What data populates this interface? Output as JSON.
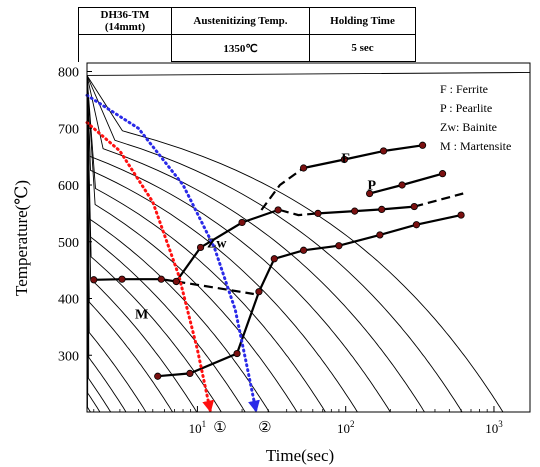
{
  "conditions_table": {
    "headers": [
      "DH36-TM",
      "Austenitizing Temp.",
      "Holding Time"
    ],
    "sample_note": "(14mmt)",
    "values": [
      "1350℃",
      "5 sec"
    ]
  },
  "chart_data": {
    "type": "line",
    "title": "",
    "xlabel": "Time(sec)",
    "ylabel": "Temperature(℃)",
    "x_scale": "log",
    "xlim": [
      1.8,
      1750
    ],
    "ylim": [
      200,
      815
    ],
    "x_ticks": [
      10,
      100,
      1000
    ],
    "x_tick_labels": [
      [
        "10",
        "1"
      ],
      [
        "10",
        "2"
      ],
      [
        "10",
        "3"
      ]
    ],
    "y_ticks": [
      300,
      400,
      500,
      600,
      700,
      800
    ],
    "y_tick_labels": [
      "300",
      "400",
      "500",
      "600",
      "700",
      "800"
    ],
    "grid": false,
    "legend": {
      "placement": "top-right",
      "entries": [
        "F : Ferrite",
        "P : Pearlite",
        "Zw: Bainite",
        "M : Martensite"
      ]
    },
    "region_labels": [
      {
        "text": "F",
        "x": 100,
        "y": 640
      },
      {
        "text": "P",
        "x": 150,
        "y": 592
      },
      {
        "text": "Zw",
        "x": 13.5,
        "y": 490
      },
      {
        "text": "M",
        "x": 4.2,
        "y": 365
      }
    ],
    "cooling_curve_ends": [
      1.9,
      2.2,
      2.6,
      3.3,
      4.5,
      6.8,
      9.9,
      14.5,
      21,
      30.5,
      47,
      73,
      120,
      200,
      340,
      610,
      1150
    ],
    "cooling_curves_color": "#000000",
    "series": [
      {
        "id": "ferrite-start",
        "style": "solid",
        "color": "#000000",
        "markers": true,
        "x": [
          52,
          98,
          180,
          330
        ],
        "y": [
          630,
          645,
          660,
          670
        ]
      },
      {
        "id": "ferrite-pearlite-boundary",
        "style": "dashed",
        "color": "#000000",
        "markers": false,
        "x": [
          27,
          36,
          52
        ],
        "y": [
          556,
          600,
          630
        ]
      },
      {
        "id": "pearlite-start",
        "style": "solid",
        "color": "#000000",
        "markers": true,
        "x": [
          145,
          240,
          450
        ],
        "y": [
          585,
          600,
          620
        ]
      },
      {
        "id": "pearlite-finish",
        "style": "solid",
        "color": "#000000",
        "markers": true,
        "x": [
          65,
          115,
          175,
          290
        ],
        "y": [
          550,
          554,
          557,
          562
        ]
      },
      {
        "id": "pearlite-finish-extension",
        "style": "dashed",
        "color": "#000000",
        "markers": false,
        "x": [
          290,
          620
        ],
        "y": [
          562,
          585
        ]
      },
      {
        "id": "ferrite-pearlite-dip",
        "style": "dashed",
        "color": "#000000",
        "markers": false,
        "x": [
          36,
          48,
          65
        ],
        "y": [
          556,
          547,
          550
        ]
      },
      {
        "id": "bainite-start",
        "style": "solid",
        "color": "#000000",
        "markers": true,
        "x": [
          7.2,
          10.5,
          20,
          35
        ],
        "y": [
          430,
          490,
          534,
          556
        ]
      },
      {
        "id": "bainite-finish",
        "style": "solid",
        "color": "#000000",
        "markers": true,
        "x": [
          5.4,
          8.9,
          18.5,
          26,
          33,
          52,
          90,
          170,
          300,
          600
        ],
        "y": [
          263,
          268,
          303,
          412,
          470,
          485,
          493,
          512,
          530,
          547
        ]
      },
      {
        "id": "martensite-start",
        "style": "solid",
        "color": "#000000",
        "markers": true,
        "x": [
          2,
          3.1,
          5.7,
          7.2
        ],
        "y": [
          433,
          434,
          434,
          430
        ]
      },
      {
        "id": "martensite-start-extension",
        "style": "dashed",
        "color": "#000000",
        "markers": false,
        "x": [
          7.2,
          14,
          24
        ],
        "y": [
          430,
          418,
          408
        ]
      },
      {
        "id": "cooling-path-1",
        "style": "dotted",
        "color": "#ff1010",
        "markers": false,
        "x": [
          1.8,
          3,
          5,
          7.5,
          10,
          12.2
        ],
        "y": [
          710,
          660,
          570,
          440,
          310,
          203
        ]
      },
      {
        "id": "cooling-path-2",
        "style": "dotted",
        "color": "#2a2ae8",
        "markers": false,
        "x": [
          1.8,
          4,
          8,
          13,
          18,
          22,
          24.8
        ],
        "y": [
          758,
          700,
          600,
          490,
          380,
          270,
          203
        ]
      }
    ],
    "path_labels": [
      {
        "text": "①",
        "x": 14.2
      },
      {
        "text": "②",
        "x": 28.5
      }
    ]
  }
}
